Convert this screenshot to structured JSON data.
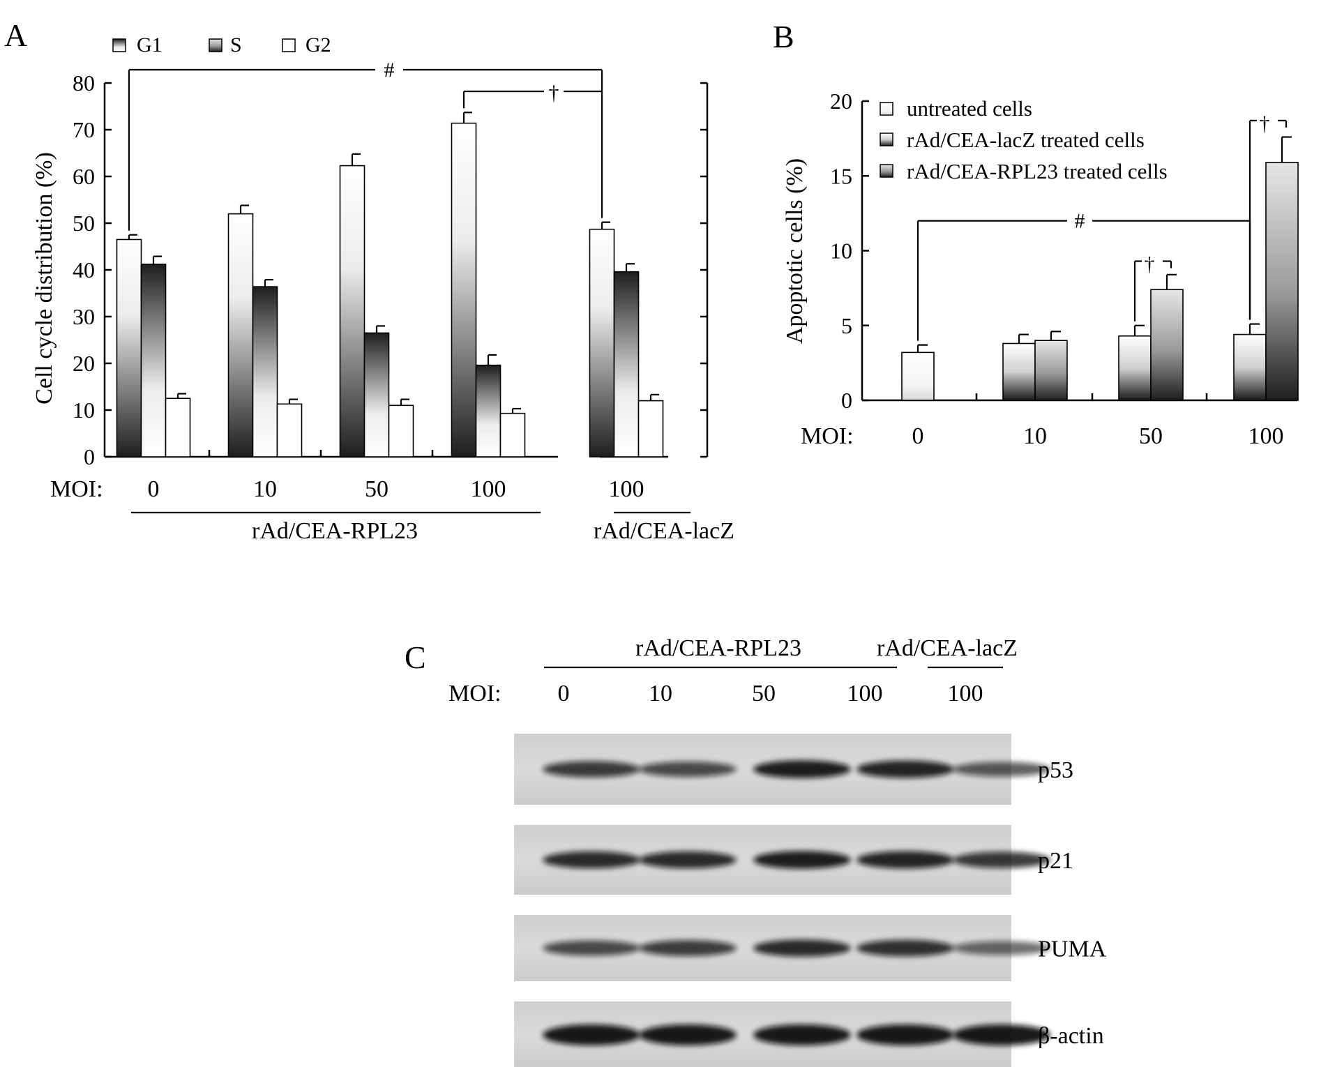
{
  "colors": {
    "axis": "#000000",
    "background": "#ffffff",
    "band": "#111111",
    "blot_bg": "#d6d6d6"
  },
  "chart_data": [
    {
      "panel": "A",
      "type": "bar",
      "ylabel": "Cell cycle distribution (%)",
      "ylim": [
        0,
        80
      ],
      "yticks": [
        "0",
        "10",
        "20",
        "30",
        "40",
        "50",
        "60",
        "70",
        "80"
      ],
      "x_prefix": "MOI:",
      "categories": [
        "0",
        "10",
        "50",
        "100",
        "100"
      ],
      "groups": [
        {
          "label": "rAd/CEA-RPL23",
          "span": [
            0,
            3
          ]
        },
        {
          "label": "rAd/CEA-lacZ",
          "span": [
            4,
            4
          ]
        }
      ],
      "legend_position": "top-left",
      "series": [
        {
          "name": "G1",
          "values": [
            46.5,
            52,
            62.3,
            71.4,
            48.7
          ],
          "errors": [
            1.0,
            1.8,
            2.5,
            2.3,
            1.5
          ]
        },
        {
          "name": "S",
          "values": [
            41.2,
            36.4,
            26.5,
            19.6,
            39.6
          ],
          "errors": [
            1.7,
            1.5,
            1.5,
            2.2,
            1.7
          ]
        },
        {
          "name": "G2",
          "values": [
            12.5,
            11.3,
            11.0,
            9.3,
            12.0
          ],
          "errors": [
            1.0,
            1.0,
            1.3,
            1.0,
            1.3
          ]
        }
      ],
      "annotations": [
        {
          "symbol": "#",
          "from": [
            0,
            0
          ],
          "to": [
            4,
            0
          ],
          "y": 82
        },
        {
          "symbol": "†",
          "from": [
            3,
            0
          ],
          "to": [
            4,
            0
          ],
          "y": 78
        }
      ]
    },
    {
      "panel": "B",
      "type": "bar",
      "ylabel": "Apoptotic cells (%)",
      "ylim": [
        0,
        20
      ],
      "yticks": [
        "0",
        "5",
        "10",
        "15",
        "20"
      ],
      "x_prefix": "MOI:",
      "categories": [
        "0",
        "10",
        "50",
        "100"
      ],
      "legend_position": "top-left",
      "series": [
        {
          "name": "untreated cells",
          "values": [
            3.2,
            null,
            null,
            null
          ],
          "errors": [
            0.5,
            null,
            null,
            null
          ]
        },
        {
          "name": "rAd/CEA-lacZ treated cells",
          "values": [
            null,
            3.8,
            4.3,
            4.4
          ],
          "errors": [
            null,
            0.6,
            0.7,
            0.7
          ]
        },
        {
          "name": "rAd/CEA-RPL23 treated cells",
          "values": [
            null,
            4.0,
            7.4,
            15.9
          ],
          "errors": [
            null,
            0.6,
            1.0,
            1.7
          ]
        }
      ],
      "annotations": [
        {
          "symbol": "#",
          "from_category": 0,
          "to_category": 3,
          "y": 12
        },
        {
          "symbol": "†",
          "category": 2,
          "y": 9.3
        },
        {
          "symbol": "†",
          "category": 3,
          "y": 18.7
        }
      ]
    },
    {
      "panel": "C",
      "type": "table",
      "kind": "western-blot",
      "groups": [
        {
          "label": "rAd/CEA-RPL23",
          "span": [
            0,
            3
          ]
        },
        {
          "label": "rAd/CEA-lacZ",
          "span": [
            4,
            4
          ]
        }
      ],
      "x_prefix": "MOI:",
      "lanes": [
        "0",
        "10",
        "50",
        "100",
        "100"
      ],
      "rows": [
        {
          "name": "p53",
          "intensity": [
            0.72,
            0.6,
            0.95,
            0.9,
            0.5
          ]
        },
        {
          "name": "p21",
          "intensity": [
            0.85,
            0.85,
            0.95,
            0.9,
            0.75
          ]
        },
        {
          "name": "PUMA",
          "intensity": [
            0.6,
            0.7,
            0.85,
            0.8,
            0.4
          ]
        },
        {
          "name": "β-actin",
          "intensity": [
            1.0,
            1.0,
            1.0,
            1.0,
            1.0
          ]
        }
      ]
    }
  ]
}
